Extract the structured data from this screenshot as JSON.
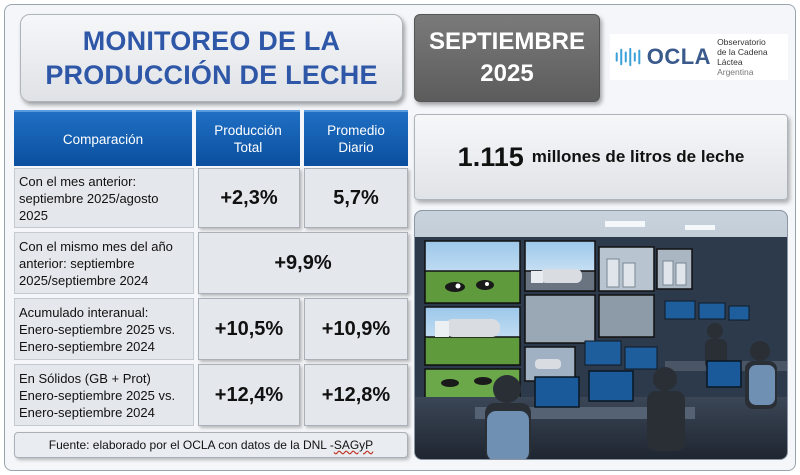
{
  "header": {
    "title_line1": "MONITOREO DE LA",
    "title_line2": "PRODUCCIÓN DE LECHE",
    "month": "SEPTIEMBRE",
    "year": "2025"
  },
  "logo": {
    "brand": "OCLA",
    "line1": "Observatorio",
    "line2": "de la Cadena Láctea",
    "line3": "Argentina",
    "color": "#3a5a8c"
  },
  "table": {
    "headers": {
      "comparison": "Comparación",
      "total": "Producción Total",
      "daily": "Promedio Diario"
    },
    "rows": [
      {
        "label": "Con el mes anterior: septiembre 2025/agosto 2025",
        "total": "+2,3%",
        "daily": "5,7%"
      },
      {
        "label": "Con el mismo mes del año anterior: septiembre 2025/septiembre 2024",
        "combined": "+9,9%"
      },
      {
        "label": "Acumulado interanual: Enero-septiembre 2025 vs. Enero-septiembre 2024",
        "total": "+10,5%",
        "daily": "+10,9%"
      },
      {
        "label": "En Sólidos (GB + Prot) Enero-septiembre 2025 vs. Enero-septiembre 2024",
        "total": "+12,4%",
        "daily": "+12,8%"
      }
    ],
    "header_color": "#0b4f9e"
  },
  "source": {
    "prefix": "Fuente: elaborado por el OCLA con datos de la DNL - ",
    "underlined": "SAGyP"
  },
  "volume": {
    "number": "1.115",
    "unit": "millones de litros de leche"
  },
  "title_color": "#2f57a8"
}
